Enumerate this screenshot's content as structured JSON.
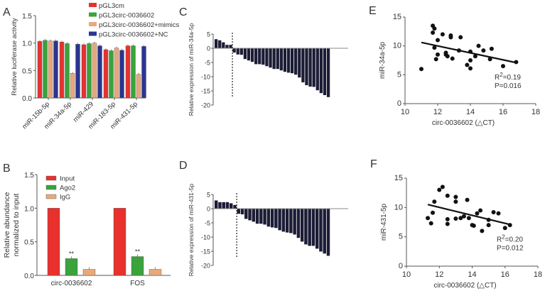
{
  "chart_data": [
    {
      "panel_label": "A",
      "type": "bar",
      "ylabel": "Relative luciferase activity",
      "ylim": [
        0,
        1.5
      ],
      "yticks": [
        "0.0",
        "0.5",
        "1.0",
        "1.5"
      ],
      "categories": [
        "miR-15b-5p",
        "miR-34a-5p",
        "miR-429",
        "miR-183-5p",
        "miR-431-5p"
      ],
      "series": [
        {
          "name": "pGL3cm",
          "color": "#e8312d",
          "values": [
            1.03,
            1.02,
            0.97,
            0.88,
            0.95
          ]
        },
        {
          "name": "pGL3circ-0036602",
          "color": "#3aa33a",
          "values": [
            1.05,
            0.99,
            0.99,
            0.86,
            0.95
          ]
        },
        {
          "name": "pGL3circ-0036602+mimics",
          "color": "#e9a87a",
          "values": [
            1.04,
            0.45,
            1.0,
            0.91,
            0.43
          ]
        },
        {
          "name": "pGL3circ-0036602+NC",
          "color": "#2b3590",
          "values": [
            1.04,
            0.98,
            0.95,
            0.87,
            0.94
          ]
        }
      ],
      "legend": "top-right"
    },
    {
      "panel_label": "B",
      "type": "bar",
      "ylabel": [
        "Relative  abundance",
        "normalized to input"
      ],
      "ylim": [
        0,
        1.5
      ],
      "yticks": [
        "0.0",
        "0.5",
        "1.0",
        "1.5"
      ],
      "categories": [
        "circ-0036602",
        "FOS"
      ],
      "series": [
        {
          "name": "Input",
          "color": "#e8312d",
          "values": [
            1.0,
            1.0
          ]
        },
        {
          "name": "Ago2",
          "color": "#3aa33a",
          "values": [
            0.25,
            0.28
          ],
          "annotation": "**"
        },
        {
          "name": "IgG",
          "color": "#e9a87a",
          "values": [
            0.09,
            0.09
          ]
        }
      ],
      "legend": "top-left"
    },
    {
      "panel_label": "C",
      "type": "bar",
      "ylabel": "Relative expression of miR-34a-5p",
      "ylim": [
        -20,
        5
      ],
      "yticks": [
        "5",
        "0",
        "-5",
        "-10",
        "-15",
        "-20"
      ],
      "color": "#1c1c36",
      "values": [
        3.2,
        2.8,
        2.1,
        1.2,
        1.2,
        -1.5,
        -2.2,
        -2.3,
        -3.8,
        -4.3,
        -4.8,
        -5.6,
        -5.6,
        -5.8,
        -6.3,
        -6.8,
        -7.3,
        -7.3,
        -7.8,
        -8.3,
        -8.6,
        -8.8,
        -9.3,
        -10.3,
        -12.0,
        -13.0,
        -13.5,
        -13.6,
        -14.8,
        -15.8,
        -16.5,
        -17.2
      ],
      "divider_after_index": 4
    },
    {
      "panel_label": "D",
      "type": "bar",
      "ylabel": "Relative expression of miR-431-5p",
      "ylim": [
        -20,
        5
      ],
      "yticks": [
        "5",
        "0",
        "-5",
        "-10",
        "-15",
        "-20"
      ],
      "color": "#1c1c36",
      "values": [
        2.9,
        2.3,
        2.3,
        2.3,
        1.9,
        1.3,
        -1.8,
        -2.0,
        -3.6,
        -4.1,
        -4.6,
        -5.3,
        -5.3,
        -5.6,
        -6.3,
        -6.6,
        -6.8,
        -7.6,
        -8.1,
        -8.4,
        -8.6,
        -9.1,
        -10.3,
        -11.6,
        -12.6,
        -13.1,
        -13.1,
        -14.1,
        -15.1,
        -15.8,
        -16.6
      ],
      "divider_after_index": 5
    },
    {
      "panel_label": "E",
      "type": "scatter",
      "xlabel": "circ-0036602 (△CT)",
      "ylabel": "miR-34a-5p",
      "xlim": [
        10,
        18
      ],
      "ylim": [
        0,
        15
      ],
      "xticks": [
        "10",
        "12",
        "14",
        "16",
        "18"
      ],
      "yticks": [
        "0",
        "5",
        "10",
        "15"
      ],
      "points": [
        [
          11,
          6
        ],
        [
          11.7,
          13.5
        ],
        [
          11.7,
          12.3
        ],
        [
          11.8,
          13
        ],
        [
          11.8,
          9.7
        ],
        [
          11.9,
          7.7
        ],
        [
          12,
          11
        ],
        [
          12,
          8.5
        ],
        [
          12.3,
          12
        ],
        [
          12.5,
          8.8
        ],
        [
          12.5,
          8.5
        ],
        [
          12.6,
          8.2
        ],
        [
          12.8,
          11.8
        ],
        [
          12.8,
          11.5
        ],
        [
          12.9,
          7.8
        ],
        [
          13.3,
          9.2
        ],
        [
          13.4,
          11.5
        ],
        [
          13.8,
          6.7
        ],
        [
          14,
          9
        ],
        [
          14,
          7.5
        ],
        [
          14,
          6.1
        ],
        [
          14.3,
          8.2
        ],
        [
          14.5,
          10
        ],
        [
          14.8,
          9.2
        ],
        [
          15.2,
          7.7
        ],
        [
          15.3,
          9.5
        ],
        [
          16,
          6.5
        ],
        [
          16.8,
          7.2
        ]
      ],
      "fit_line": [
        [
          11,
          10.6
        ],
        [
          16.8,
          7.1
        ]
      ],
      "r2_prefix": "R",
      "r2_sup": "2",
      "r2_value": "=0.19",
      "p_text": "P=0.016"
    },
    {
      "panel_label": "F",
      "type": "scatter",
      "xlabel": "circ-0036602 (△CT)",
      "ylabel": "miR-431-5p",
      "xlim": [
        10,
        18
      ],
      "ylim": [
        0,
        15
      ],
      "xticks": [
        "10",
        "12",
        "14",
        "16",
        "18"
      ],
      "yticks": [
        "0",
        "5",
        "10",
        "15"
      ],
      "points": [
        [
          11.3,
          8.2
        ],
        [
          11.5,
          7.3
        ],
        [
          11.6,
          9.1
        ],
        [
          11.7,
          11
        ],
        [
          12,
          13
        ],
        [
          12.2,
          13.5
        ],
        [
          12.5,
          12
        ],
        [
          12.5,
          8
        ],
        [
          12.5,
          7.2
        ],
        [
          13,
          11.8
        ],
        [
          13,
          11
        ],
        [
          13,
          8.1
        ],
        [
          13.3,
          8.2
        ],
        [
          13.5,
          8.5
        ],
        [
          13.7,
          11.3
        ],
        [
          13.8,
          8.2
        ],
        [
          14,
          7
        ],
        [
          14.1,
          6.9
        ],
        [
          14.3,
          9
        ],
        [
          14.5,
          9.5
        ],
        [
          14.6,
          6
        ],
        [
          15,
          7.9
        ],
        [
          15,
          7
        ],
        [
          15.3,
          9.2
        ],
        [
          15.6,
          9
        ],
        [
          16,
          6.5
        ],
        [
          16.3,
          7
        ]
      ],
      "fit_line": [
        [
          11.3,
          10.5
        ],
        [
          16.3,
          7.1
        ]
      ],
      "r2_prefix": "R",
      "r2_sup": "2",
      "r2_value": "=0.20",
      "p_text": "P=0.012"
    }
  ]
}
